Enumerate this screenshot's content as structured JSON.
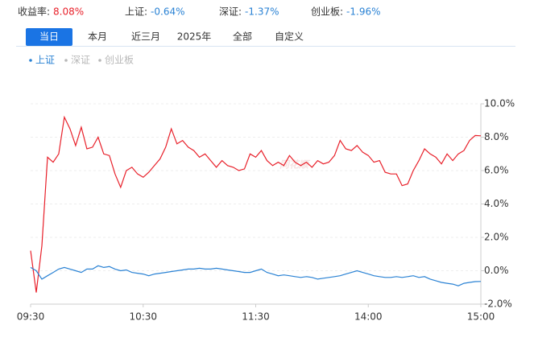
{
  "header": {
    "items": [
      {
        "label": "收益率:",
        "value": "8.08%",
        "color": "#e8202a"
      },
      {
        "label": "上证:",
        "value": "-0.64%",
        "color": "#2a82d4"
      },
      {
        "label": "深证:",
        "value": "-1.37%",
        "color": "#2a82d4"
      },
      {
        "label": "创业板:",
        "value": "-1.96%",
        "color": "#2a82d4"
      }
    ]
  },
  "tabs": [
    "当日",
    "本月",
    "近三月",
    "2025年",
    "全部",
    "自定义"
  ],
  "watermark": "同花顺",
  "chart_data": {
    "type": "line",
    "legend": [
      {
        "name": "上证",
        "color": "#2a82d4"
      },
      {
        "name": "深证",
        "color": "#b8b8b8"
      },
      {
        "name": "创业板",
        "color": "#b8b8b8"
      }
    ],
    "categories": [
      "09:30",
      null,
      null,
      null,
      null,
      null,
      null,
      null,
      null,
      null,
      null,
      null,
      null,
      null,
      null,
      null,
      null,
      null,
      null,
      null,
      "10:30",
      null,
      null,
      null,
      null,
      null,
      null,
      null,
      null,
      null,
      null,
      null,
      null,
      null,
      null,
      null,
      null,
      null,
      null,
      null,
      "11:30",
      null,
      null,
      null,
      null,
      null,
      null,
      null,
      null,
      null,
      null,
      null,
      null,
      null,
      null,
      null,
      null,
      null,
      null,
      null,
      "14:00",
      null,
      null,
      null,
      null,
      null,
      null,
      null,
      null,
      null,
      null,
      null,
      null,
      null,
      null,
      null,
      null,
      null,
      null,
      null,
      "15:00"
    ],
    "series": [
      {
        "color": "#e8202a",
        "values": [
          1.2,
          -1.3,
          1.5,
          6.8,
          6.5,
          7.0,
          9.2,
          8.5,
          7.5,
          8.6,
          7.3,
          7.4,
          8.0,
          7.0,
          6.9,
          5.8,
          5.0,
          6.0,
          6.2,
          5.8,
          5.6,
          5.9,
          6.3,
          6.7,
          7.4,
          8.5,
          7.6,
          7.8,
          7.4,
          7.2,
          6.8,
          7.0,
          6.6,
          6.2,
          6.6,
          6.3,
          6.2,
          6.0,
          6.1,
          7.0,
          6.8,
          7.2,
          6.6,
          6.3,
          6.5,
          6.3,
          6.9,
          6.5,
          6.3,
          6.5,
          6.2,
          6.6,
          6.4,
          6.5,
          6.9,
          7.8,
          7.3,
          7.2,
          7.5,
          7.1,
          6.9,
          6.5,
          6.6,
          5.9,
          5.8,
          5.8,
          5.1,
          5.2,
          6.0,
          6.6,
          7.3,
          7.0,
          6.8,
          6.4,
          7.0,
          6.6,
          7.0,
          7.2,
          7.8,
          8.1,
          8.08
        ]
      },
      {
        "color": "#2a82d4",
        "values": [
          0.2,
          0.0,
          -0.5,
          -0.3,
          -0.1,
          0.1,
          0.2,
          0.1,
          0.0,
          -0.1,
          0.1,
          0.1,
          0.3,
          0.2,
          0.25,
          0.1,
          0.0,
          0.05,
          -0.1,
          -0.15,
          -0.2,
          -0.3,
          -0.2,
          -0.15,
          -0.1,
          -0.05,
          0.0,
          0.05,
          0.1,
          0.1,
          0.15,
          0.1,
          0.1,
          0.15,
          0.1,
          0.05,
          0.0,
          -0.05,
          -0.1,
          -0.1,
          0.0,
          0.1,
          -0.1,
          -0.2,
          -0.3,
          -0.25,
          -0.3,
          -0.35,
          -0.4,
          -0.35,
          -0.4,
          -0.5,
          -0.45,
          -0.4,
          -0.35,
          -0.3,
          -0.2,
          -0.1,
          0.0,
          -0.1,
          -0.2,
          -0.3,
          -0.35,
          -0.4,
          -0.4,
          -0.35,
          -0.4,
          -0.35,
          -0.3,
          -0.4,
          -0.35,
          -0.5,
          -0.6,
          -0.7,
          -0.75,
          -0.8,
          -0.9,
          -0.75,
          -0.7,
          -0.65,
          -0.64
        ]
      }
    ],
    "ylim": [
      -2,
      10
    ],
    "yticks": [
      {
        "value": -2,
        "label": "-2.0%"
      },
      {
        "value": 0,
        "label": "0.0%"
      },
      {
        "value": 2,
        "label": "2.0%"
      },
      {
        "value": 4,
        "label": "4.0%"
      },
      {
        "value": 6,
        "label": "6.0%"
      },
      {
        "value": 8,
        "label": "8.0%"
      },
      {
        "value": 10,
        "label": "10.0%"
      }
    ],
    "grid": true
  }
}
